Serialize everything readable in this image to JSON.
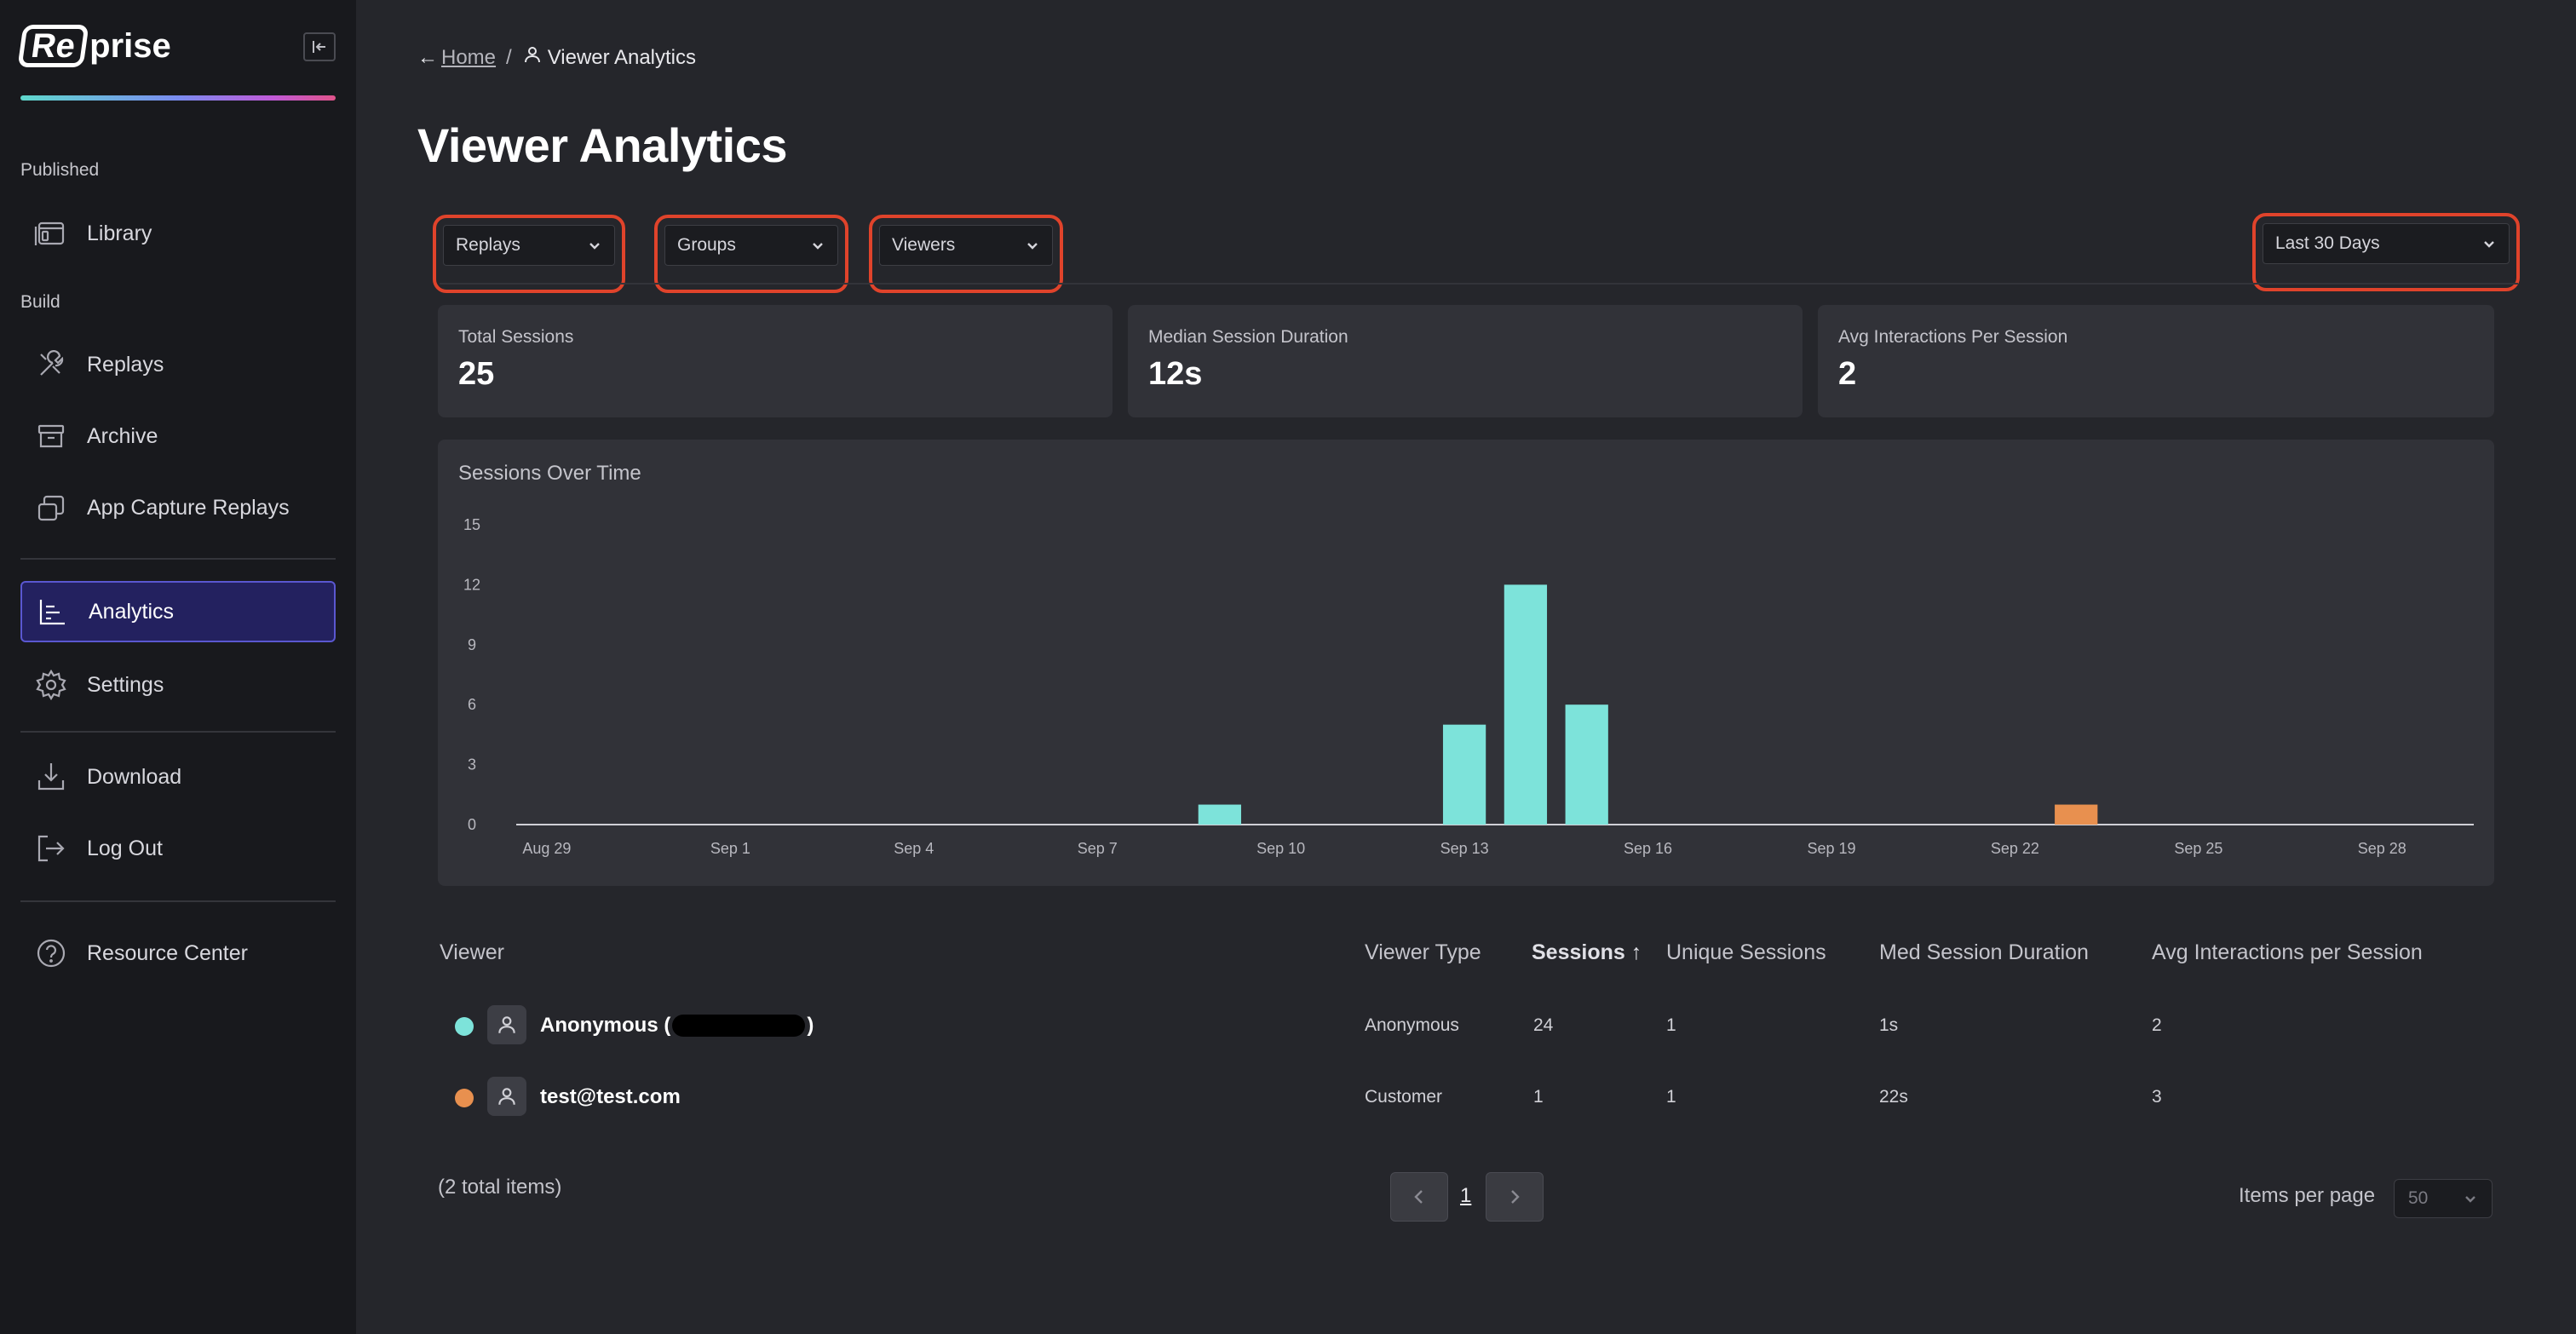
{
  "brand": {
    "logo_box": "Re",
    "logo_rest": "prise"
  },
  "sidebar": {
    "sections": {
      "published": "Published",
      "build": "Build"
    },
    "items": [
      {
        "label": "Library",
        "icon": "library-icon"
      },
      {
        "label": "Replays",
        "icon": "tools-icon"
      },
      {
        "label": "Archive",
        "icon": "archive-icon"
      },
      {
        "label": "App Capture Replays",
        "icon": "stack-icon"
      },
      {
        "label": "Analytics",
        "icon": "chart-icon",
        "active": true
      },
      {
        "label": "Settings",
        "icon": "gear-icon"
      },
      {
        "label": "Download",
        "icon": "download-icon"
      },
      {
        "label": "Log Out",
        "icon": "logout-icon"
      },
      {
        "label": "Resource Center",
        "icon": "help-icon"
      }
    ]
  },
  "breadcrumb": {
    "arrow": "←",
    "home": "Home",
    "separator": "/",
    "current": "Viewer Analytics"
  },
  "page": {
    "title": "Viewer Analytics"
  },
  "filters": {
    "replays": "Replays",
    "groups": "Groups",
    "viewers": "Viewers",
    "date_range": "Last 30 Days"
  },
  "stats": [
    {
      "label": "Total Sessions",
      "value": "25"
    },
    {
      "label": "Median Session Duration",
      "value": "12s"
    },
    {
      "label": "Avg Interactions Per Session",
      "value": "2"
    }
  ],
  "chart_data": {
    "type": "bar",
    "title": "Sessions Over Time",
    "x_ticks": [
      "Aug 29",
      "Sep 1",
      "Sep 4",
      "Sep 7",
      "Sep 10",
      "Sep 13",
      "Sep 16",
      "Sep 19",
      "Sep 22",
      "Sep 25",
      "Sep 28"
    ],
    "y_ticks": [
      0,
      3,
      6,
      9,
      12,
      15
    ],
    "ylim": [
      0,
      15
    ],
    "bars": [
      {
        "date": "Sep 9",
        "value": 1,
        "series": "Anonymous"
      },
      {
        "date": "Sep 13",
        "value": 5,
        "series": "Anonymous"
      },
      {
        "date": "Sep 14",
        "value": 12,
        "series": "Anonymous"
      },
      {
        "date": "Sep 15",
        "value": 6,
        "series": "Anonymous"
      },
      {
        "date": "Sep 23",
        "value": 1,
        "series": "test@test.com"
      }
    ],
    "colors": {
      "Anonymous": "#7de3da",
      "test@test.com": "#e8904f"
    }
  },
  "table": {
    "headers": {
      "viewer": "Viewer",
      "viewer_type": "Viewer Type",
      "sessions": "Sessions ↑",
      "unique_sessions": "Unique Sessions",
      "med_duration": "Med Session Duration",
      "avg_interactions": "Avg Interactions per Session"
    },
    "rows": [
      {
        "name_prefix": "Anonymous (",
        "name_suffix": ")",
        "type": "Anonymous",
        "sessions": "24",
        "unique": "1",
        "duration": "1s",
        "interactions": "2",
        "color": "#7de3da"
      },
      {
        "name": "test@test.com",
        "type": "Customer",
        "sessions": "1",
        "unique": "1",
        "duration": "22s",
        "interactions": "3",
        "color": "#e8904f"
      }
    ]
  },
  "pagination": {
    "total": "(2 total items)",
    "page": "1",
    "items_per_page_label": "Items per page",
    "items_per_page": "50"
  }
}
